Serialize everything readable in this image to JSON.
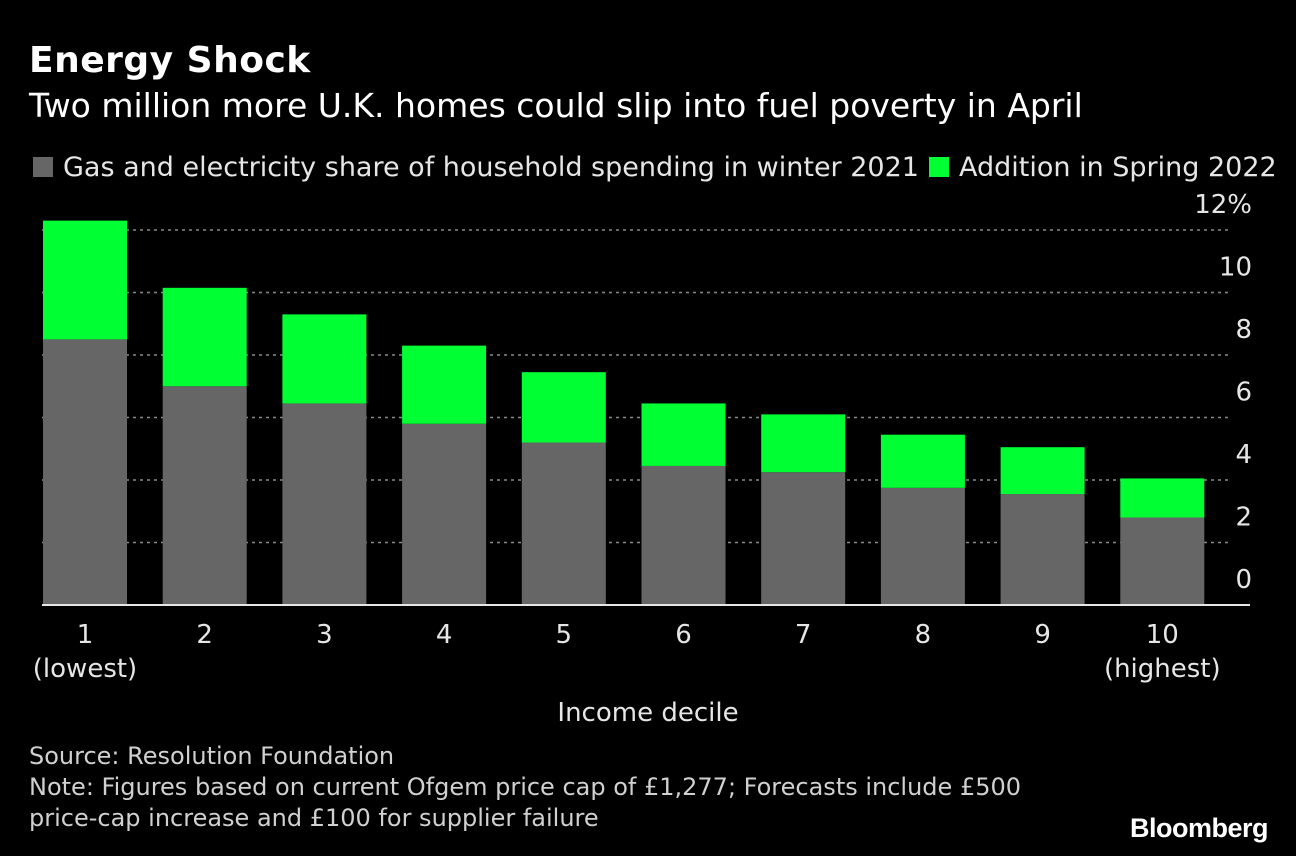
{
  "header": {
    "title": "Energy Shock",
    "subtitle": "Two million more U.K. homes could slip into fuel poverty in April"
  },
  "legend": [
    {
      "label": "Gas and electricity share of household spending in winter 2021",
      "color": "#666666"
    },
    {
      "label": "Addition in Spring 2022",
      "color": "#00ff33"
    }
  ],
  "chart_data": {
    "type": "bar",
    "stacked": true,
    "categories": [
      "1",
      "2",
      "3",
      "4",
      "5",
      "6",
      "7",
      "8",
      "9",
      "10"
    ],
    "category_sublabels": [
      "(lowest)",
      "",
      "",
      "",
      "",
      "",
      "",
      "",
      "",
      "(highest)"
    ],
    "series": [
      {
        "name": "Gas and electricity share of household spending in winter 2021",
        "color": "#666666",
        "values": [
          8.5,
          7.0,
          6.45,
          5.8,
          5.2,
          4.45,
          4.25,
          3.75,
          3.55,
          2.8
        ]
      },
      {
        "name": "Addition in Spring 2022",
        "color": "#00ff33",
        "values": [
          3.8,
          3.15,
          2.85,
          2.5,
          2.25,
          2.0,
          1.85,
          1.7,
          1.5,
          1.25
        ]
      }
    ],
    "xlabel": "Income decile",
    "ylabel": "",
    "ylim": [
      0,
      12
    ],
    "yticks": [
      0,
      2,
      4,
      6,
      8,
      10,
      12
    ],
    "ytick_labels": [
      "0",
      "2",
      "4",
      "6",
      "8",
      "10",
      "12%"
    ],
    "grid": true,
    "legend_position": "top"
  },
  "footer": {
    "source": "Source: Resolution Foundation",
    "note_line1": "Note: Figures based on current Ofgem price cap of £1,277; Forecasts include £500",
    "note_line2": "price-cap increase and £100 for supplier failure"
  },
  "brand": "Bloomberg"
}
